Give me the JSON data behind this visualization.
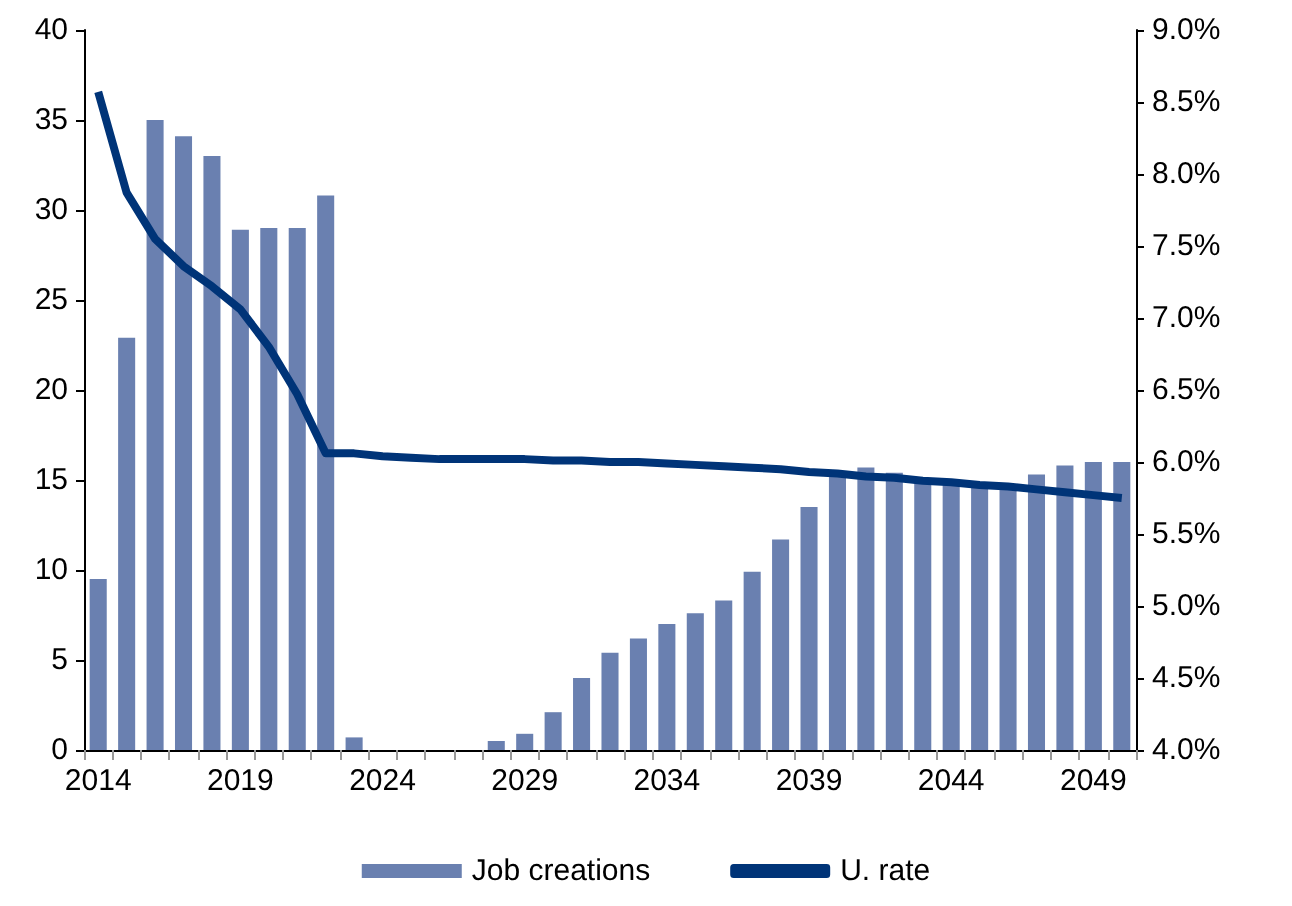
{
  "chart_data": {
    "type": "bar",
    "categories": [
      "2014",
      null,
      null,
      null,
      null,
      "2019",
      null,
      null,
      null,
      null,
      "2024",
      null,
      null,
      null,
      null,
      "2029",
      null,
      null,
      null,
      null,
      "2034",
      null,
      null,
      null,
      null,
      "2039",
      null,
      null,
      null,
      null,
      "2044",
      null,
      null,
      null,
      null,
      "2049",
      null
    ],
    "series": [
      {
        "name": "Job creations",
        "color": "#6a80b0",
        "values": [
          9.5,
          22.9,
          35,
          34.1,
          33,
          28.9,
          29,
          29,
          30.8,
          0.7,
          0,
          0,
          0,
          0,
          0.5,
          0.9,
          2.1,
          4.0,
          5.4,
          6.2,
          7.0,
          7.6,
          8.3,
          9.9,
          11.7,
          13.5,
          15.2,
          15.7,
          15.4,
          15.0,
          14.8,
          14.8,
          14.7,
          15.3,
          15.8,
          16.0,
          16.0
        ]
      },
      {
        "name": "U. rate",
        "type": "line",
        "axis": "y2",
        "color": "#003478",
        "values": [
          8.57,
          7.87,
          7.55,
          7.36,
          7.22,
          7.06,
          6.8,
          6.47,
          6.06,
          6.06,
          6.04,
          6.03,
          6.02,
          6.02,
          6.02,
          6.02,
          6.01,
          6.01,
          6.0,
          6.0,
          5.99,
          5.98,
          5.97,
          5.96,
          5.95,
          5.93,
          5.92,
          5.9,
          5.89,
          5.87,
          5.86,
          5.84,
          5.83,
          5.81,
          5.79,
          5.77,
          5.75
        ]
      }
    ],
    "ylim": [
      0,
      40
    ],
    "yticks": [
      0,
      5,
      10,
      15,
      20,
      25,
      30,
      35,
      40
    ],
    "y2lim": [
      4,
      9
    ],
    "y2ticks": [
      {
        "value": 4,
        "label": "4.0%"
      },
      {
        "value": 4.5,
        "label": "4.5%"
      },
      {
        "value": 5,
        "label": "5.0%"
      },
      {
        "value": 5.5,
        "label": "5.5%"
      },
      {
        "value": 6,
        "label": "6.0%"
      },
      {
        "value": 6.5,
        "label": "6.5%"
      },
      {
        "value": 7,
        "label": "7.0%"
      },
      {
        "value": 7.5,
        "label": "7.5%"
      },
      {
        "value": 8,
        "label": "8.0%"
      },
      {
        "value": 8.5,
        "label": "8.5%"
      },
      {
        "value": 9,
        "label": "9.0%"
      }
    ],
    "grid": false,
    "legend": "bottom",
    "marker": "none",
    "line_style": "solid"
  }
}
